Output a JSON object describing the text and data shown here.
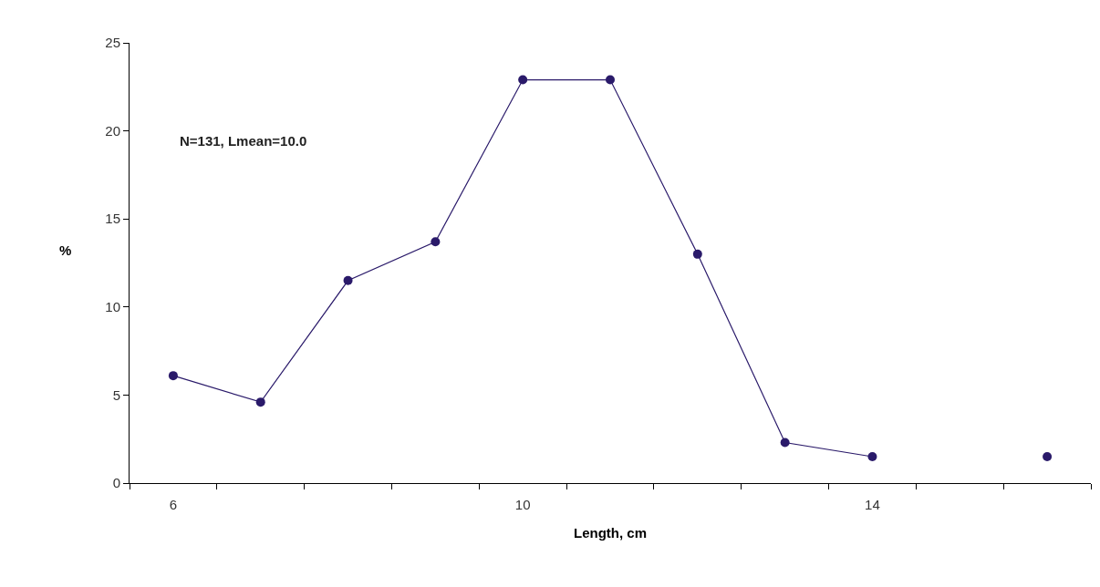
{
  "chart_data": {
    "type": "line",
    "xlabel": "Length, cm",
    "ylabel": "%",
    "categories": [
      "6",
      null,
      null,
      null,
      "10",
      null,
      null,
      null,
      "14",
      null,
      null
    ],
    "series": [
      {
        "color": "#2a1a6a",
        "values": [
          6.1,
          4.6,
          11.5,
          13.7,
          22.9,
          22.9,
          13.0,
          2.3,
          1.5,
          null,
          1.5
        ]
      }
    ],
    "ylim": [
      0,
      25
    ],
    "yticks": [
      0,
      5,
      10,
      15,
      20,
      25
    ],
    "annotations": [
      "N=131, Lmean=10.0"
    ],
    "marker": "circle",
    "line_style": "solid"
  }
}
